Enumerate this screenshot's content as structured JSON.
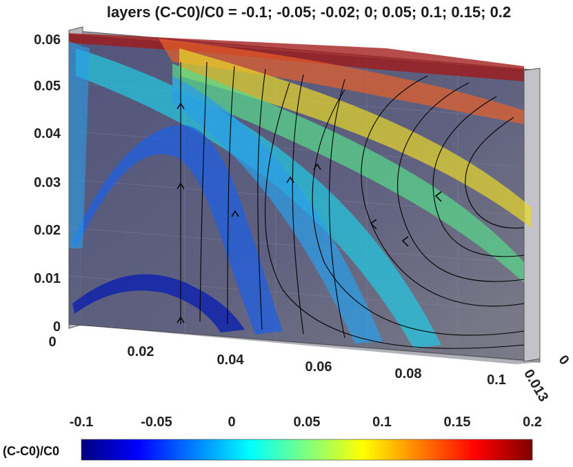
{
  "chart_data": {
    "type": "3d-isosurface",
    "title": "layers (C-C0)/C0 = -0.1; -0.05; -0.02; 0; 0.05; 0.1; 0.15; 0.2",
    "isosurface_levels": [
      -0.1,
      -0.05,
      -0.02,
      0,
      0.05,
      0.1,
      0.15,
      0.2
    ],
    "streamlines": true,
    "axes": {
      "x": {
        "range": [
          0,
          0.1
        ],
        "ticks": [
          "0",
          "0.02",
          "0.04",
          "0.06",
          "0.08",
          "0.1"
        ]
      },
      "y": {
        "range": [
          0,
          0.013
        ],
        "ticks": [
          "0",
          "0.013"
        ]
      },
      "z": {
        "range": [
          0,
          0.06
        ],
        "ticks": [
          "0",
          "0.01",
          "0.02",
          "0.03",
          "0.04",
          "0.05",
          "0.06"
        ]
      }
    },
    "colorbar": {
      "label": "(C-C0)/C0",
      "range": [
        -0.1,
        0.2
      ],
      "ticks": [
        "-0.1",
        "-0.05",
        "0",
        "0.05",
        "0.1",
        "0.15",
        "0.2"
      ],
      "colormap": "jet",
      "colors": [
        "#00007f",
        "#0000ff",
        "#007fff",
        "#00ffff",
        "#7fff7f",
        "#ffff00",
        "#ff7f00",
        "#ff0000",
        "#7f0000"
      ]
    },
    "layer_colors": {
      "-0.1": "#0a1fb0",
      "-0.05": "#1f5fe0",
      "-0.02": "#2a9ee8",
      "0": "#22c8e0",
      "0.05": "#58d88a",
      "0.1": "#e8d82a",
      "0.15": "#e8602a",
      "0.2": "#a01818"
    }
  }
}
